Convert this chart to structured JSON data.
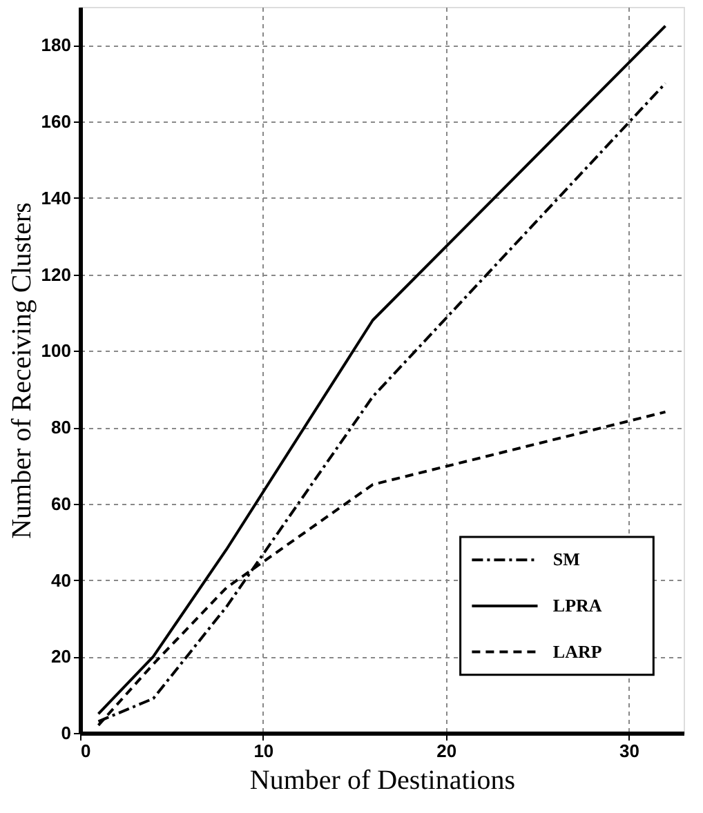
{
  "chart_data": {
    "type": "line",
    "xlabel": "Number of Destinations",
    "ylabel": "Number of Receiving Clusters",
    "x": [
      1,
      4,
      8,
      16,
      32
    ],
    "series": [
      {
        "name": "SM",
        "color": "#000000",
        "line_style": "dashdot",
        "values": [
          3,
          9,
          33,
          88,
          170
        ]
      },
      {
        "name": "LPRA",
        "color": "#000000",
        "line_style": "solid",
        "values": [
          5,
          20,
          48,
          108,
          185
        ]
      },
      {
        "name": "LARP",
        "color": "#000000",
        "line_style": "dashed",
        "values": [
          2,
          18,
          38,
          65,
          84
        ]
      }
    ],
    "xlim": [
      0,
      33
    ],
    "ylim": [
      0,
      190
    ],
    "xticks": [
      0,
      10,
      20,
      30
    ],
    "yticks": [
      0,
      20,
      40,
      60,
      80,
      100,
      120,
      140,
      160,
      180
    ],
    "grid": true,
    "legend": "bottom right",
    "marker": "none"
  }
}
